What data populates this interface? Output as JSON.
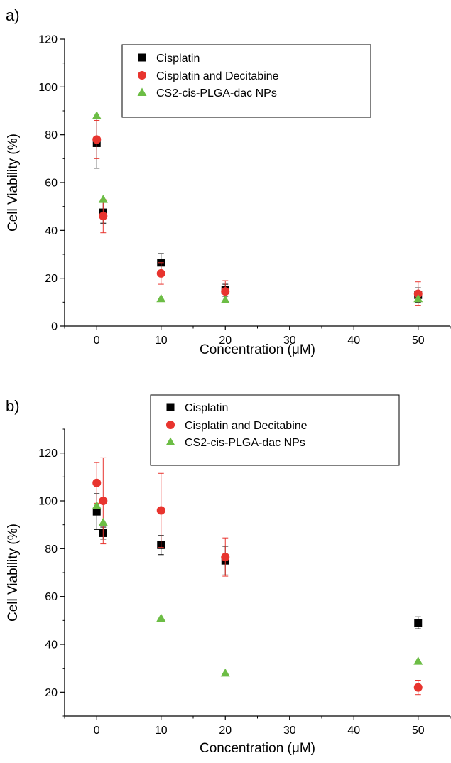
{
  "colors": {
    "cisplatin": "#000000",
    "cisplatin_decitabine": "#e8342e",
    "nanoparticles": "#6cbd45"
  },
  "chart_data": [
    {
      "type": "scatter",
      "panel_label": "a)",
      "xlabel": "Concentration (μM)",
      "ylabel": "Cell Viability (%)",
      "xlim": [
        -5,
        55
      ],
      "ylim": [
        0,
        120
      ],
      "xticks": [
        0,
        10,
        20,
        30,
        40,
        50
      ],
      "yticks": [
        0,
        20,
        40,
        60,
        80,
        100,
        120
      ],
      "legend_position": "top-center",
      "grid": false,
      "series": [
        {
          "name": "Cisplatin",
          "marker": "square",
          "x": [
            0,
            1,
            10,
            20,
            50
          ],
          "y": [
            76.5,
            47.5,
            26.5,
            15,
            13
          ],
          "err": [
            10.5,
            4.5,
            3.8,
            2.5,
            3
          ]
        },
        {
          "name": "Cisplatin and Decitabine",
          "marker": "circle",
          "x": [
            0,
            1,
            10,
            20,
            50
          ],
          "y": [
            78,
            46,
            22,
            14.5,
            13.5
          ],
          "err": [
            8,
            7,
            4.5,
            4.5,
            5
          ]
        },
        {
          "name": "CS2-cis-PLGA-dac NPs",
          "marker": "triangle",
          "x": [
            0,
            1,
            10,
            20,
            50
          ],
          "y": [
            88,
            53,
            11.5,
            11,
            11.5
          ],
          "err": [
            0,
            0,
            0,
            0,
            0
          ]
        }
      ]
    },
    {
      "type": "scatter",
      "panel_label": "b)",
      "xlabel": "Concentration (μM)",
      "ylabel": "Cell Viability (%)",
      "xlim": [
        -5,
        55
      ],
      "ylim": [
        10,
        130
      ],
      "xticks": [
        0,
        10,
        20,
        30,
        40,
        50
      ],
      "yticks": [
        20,
        40,
        60,
        80,
        100,
        120
      ],
      "legend_position": "top-center",
      "grid": false,
      "series": [
        {
          "name": "Cisplatin",
          "marker": "square",
          "x": [
            0,
            1,
            10,
            20,
            50
          ],
          "y": [
            95.5,
            86.5,
            81.5,
            75,
            49
          ],
          "err": [
            7.5,
            2.5,
            4,
            6,
            2.5
          ]
        },
        {
          "name": "Cisplatin and Decitabine",
          "marker": "circle",
          "x": [
            0,
            1,
            10,
            20,
            50
          ],
          "y": [
            107.5,
            100,
            96,
            76.5,
            22
          ],
          "err": [
            8.5,
            18,
            15.5,
            8,
            3
          ]
        },
        {
          "name": "CS2-cis-PLGA-dac NPs",
          "marker": "triangle",
          "x": [
            0,
            1,
            10,
            20,
            50
          ],
          "y": [
            98,
            91,
            51,
            28,
            33
          ],
          "err": [
            0,
            0,
            0,
            0,
            0
          ]
        }
      ]
    }
  ]
}
